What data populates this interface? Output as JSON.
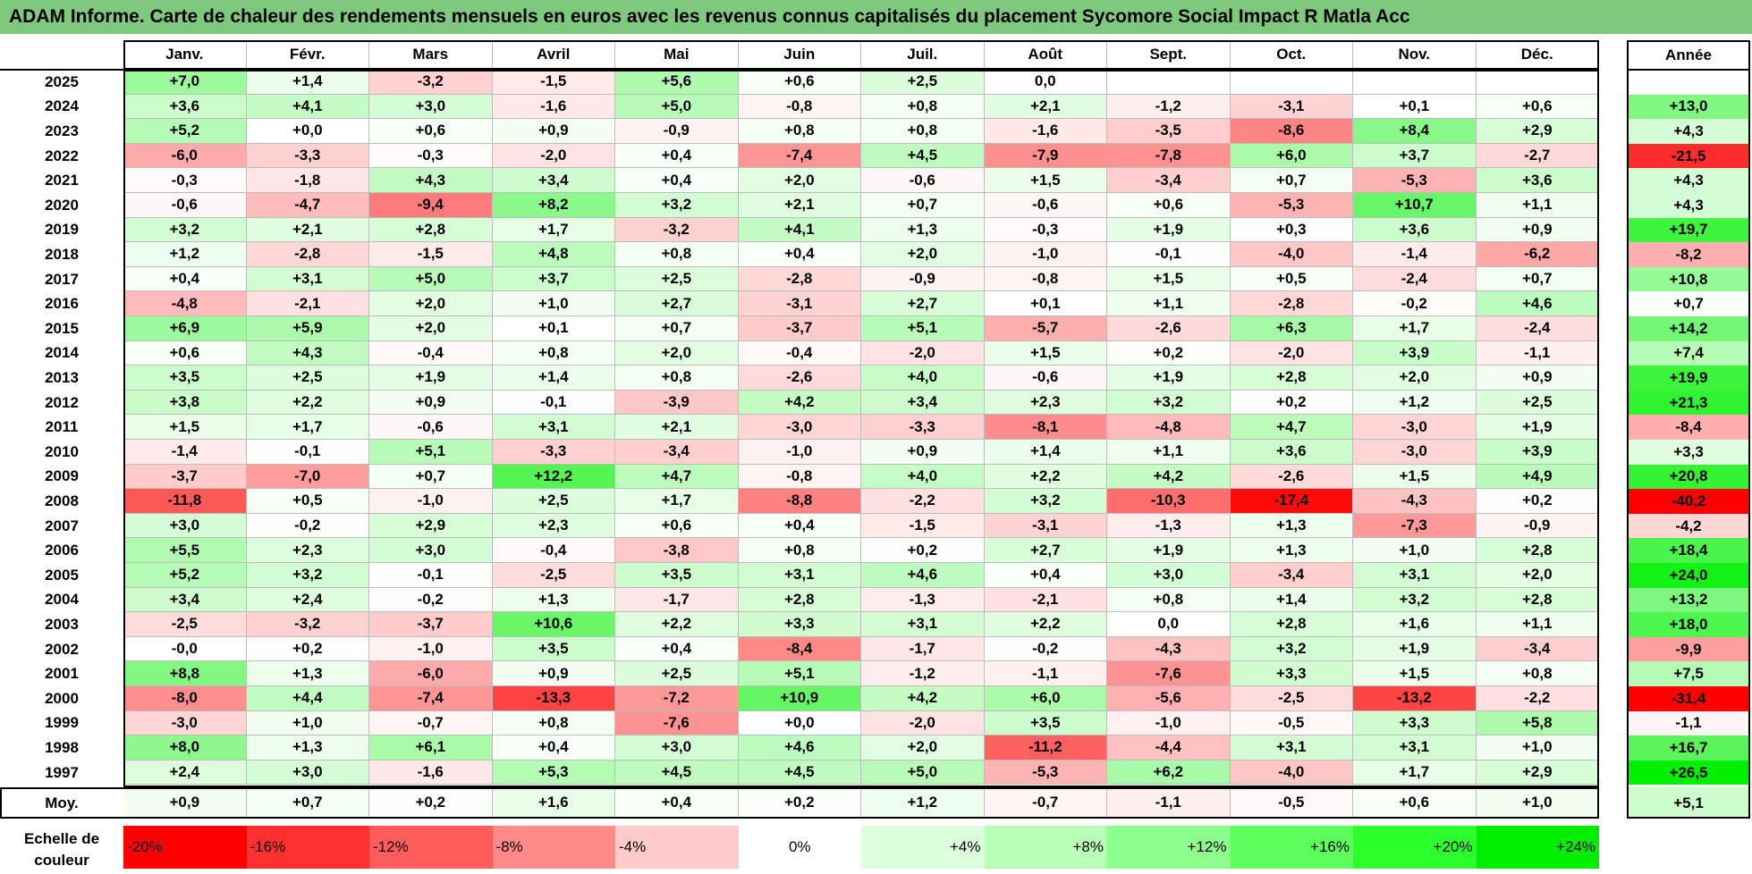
{
  "title": "ADAM Informe. Carte de chaleur des rendements mensuels en euros avec les revenus connus capitalisés du placement Sycomore Social Impact R Matla Acc",
  "chart_data": {
    "type": "heatmap",
    "title": "ADAM Informe. Carte de chaleur des rendements mensuels en euros avec les revenus connus capitalisés du placement Sycomore Social Impact R Matla Acc",
    "months": [
      "Janv.",
      "Févr.",
      "Mars",
      "Avril",
      "Mai",
      "Juin",
      "Juil.",
      "Août",
      "Sept.",
      "Oct.",
      "Nov.",
      "Déc."
    ],
    "year_header": "Année",
    "rows": [
      {
        "year": "2025",
        "values": [
          "+7,0",
          "+1,4",
          "-3,2",
          "-1,5",
          "+5,6",
          "+0,6",
          "+2,5",
          "0,0",
          "",
          "",
          "",
          ""
        ],
        "annual": ""
      },
      {
        "year": "2024",
        "values": [
          "+3,6",
          "+4,1",
          "+3,0",
          "-1,6",
          "+5,0",
          "-0,8",
          "+0,8",
          "+2,1",
          "-1,2",
          "-3,1",
          "+0,1",
          "+0,6"
        ],
        "annual": "+13,0"
      },
      {
        "year": "2023",
        "values": [
          "+5,2",
          "+0,0",
          "+0,6",
          "+0,9",
          "-0,9",
          "+0,8",
          "+0,8",
          "-1,6",
          "-3,5",
          "-8,6",
          "+8,4",
          "+2,9"
        ],
        "annual": "+4,3"
      },
      {
        "year": "2022",
        "values": [
          "-6,0",
          "-3,3",
          "-0,3",
          "-2,0",
          "+0,4",
          "-7,4",
          "+4,5",
          "-7,9",
          "-7,8",
          "+6,0",
          "+3,7",
          "-2,7"
        ],
        "annual": "-21,5"
      },
      {
        "year": "2021",
        "values": [
          "-0,3",
          "-1,8",
          "+4,3",
          "+3,4",
          "+0,4",
          "+2,0",
          "-0,6",
          "+1,5",
          "-3,4",
          "+0,7",
          "-5,3",
          "+3,6"
        ],
        "annual": "+4,3"
      },
      {
        "year": "2020",
        "values": [
          "-0,6",
          "-4,7",
          "-9,4",
          "+8,2",
          "+3,2",
          "+2,1",
          "+0,7",
          "-0,6",
          "+0,6",
          "-5,3",
          "+10,7",
          "+1,1"
        ],
        "annual": "+4,3"
      },
      {
        "year": "2019",
        "values": [
          "+3,2",
          "+2,1",
          "+2,8",
          "+1,7",
          "-3,2",
          "+4,1",
          "+1,3",
          "-0,3",
          "+1,9",
          "+0,3",
          "+3,6",
          "+0,9"
        ],
        "annual": "+19,7"
      },
      {
        "year": "2018",
        "values": [
          "+1,2",
          "-2,8",
          "-1,5",
          "+4,8",
          "+0,8",
          "+0,4",
          "+2,0",
          "-1,0",
          "-0,1",
          "-4,0",
          "-1,4",
          "-6,2"
        ],
        "annual": "-8,2"
      },
      {
        "year": "2017",
        "values": [
          "+0,4",
          "+3,1",
          "+5,0",
          "+3,7",
          "+2,5",
          "-2,8",
          "-0,9",
          "-0,8",
          "+1,5",
          "+0,5",
          "-2,4",
          "+0,7"
        ],
        "annual": "+10,8"
      },
      {
        "year": "2016",
        "values": [
          "-4,8",
          "-2,1",
          "+2,0",
          "+1,0",
          "+2,7",
          "-3,1",
          "+2,7",
          "+0,1",
          "+1,1",
          "-2,8",
          "-0,2",
          "+4,6"
        ],
        "annual": "+0,7"
      },
      {
        "year": "2015",
        "values": [
          "+6,9",
          "+5,9",
          "+2,0",
          "+0,1",
          "+0,7",
          "-3,7",
          "+5,1",
          "-5,7",
          "-2,6",
          "+6,3",
          "+1,7",
          "-2,4"
        ],
        "annual": "+14,2"
      },
      {
        "year": "2014",
        "values": [
          "+0,6",
          "+4,3",
          "-0,4",
          "+0,8",
          "+2,0",
          "-0,4",
          "-2,0",
          "+1,5",
          "+0,2",
          "-2,0",
          "+3,9",
          "-1,1"
        ],
        "annual": "+7,4"
      },
      {
        "year": "2013",
        "values": [
          "+3,5",
          "+2,5",
          "+1,9",
          "+1,4",
          "+0,8",
          "-2,6",
          "+4,0",
          "-0,6",
          "+1,9",
          "+2,8",
          "+2,0",
          "+0,9"
        ],
        "annual": "+19,9"
      },
      {
        "year": "2012",
        "values": [
          "+3,8",
          "+2,2",
          "+0,9",
          "-0,1",
          "-3,9",
          "+4,2",
          "+3,4",
          "+2,3",
          "+3,2",
          "+0,2",
          "+1,2",
          "+2,5"
        ],
        "annual": "+21,3"
      },
      {
        "year": "2011",
        "values": [
          "+1,5",
          "+1,7",
          "-0,6",
          "+3,1",
          "+2,1",
          "-3,0",
          "-3,3",
          "-8,1",
          "-4,8",
          "+4,7",
          "-3,0",
          "+1,9"
        ],
        "annual": "-8,4"
      },
      {
        "year": "2010",
        "values": [
          "-1,4",
          "-0,1",
          "+5,1",
          "-3,3",
          "-3,4",
          "-1,0",
          "+0,9",
          "+1,4",
          "+1,1",
          "+3,6",
          "-3,0",
          "+3,9"
        ],
        "annual": "+3,3"
      },
      {
        "year": "2009",
        "values": [
          "-3,7",
          "-7,0",
          "+0,7",
          "+12,2",
          "+4,7",
          "-0,8",
          "+4,0",
          "+2,2",
          "+4,2",
          "-2,6",
          "+1,5",
          "+4,9"
        ],
        "annual": "+20,8"
      },
      {
        "year": "2008",
        "values": [
          "-11,8",
          "+0,5",
          "-1,0",
          "+2,5",
          "+1,7",
          "-8,8",
          "-2,2",
          "+3,2",
          "-10,3",
          "-17,4",
          "-4,3",
          "+0,2"
        ],
        "annual": "-40,2"
      },
      {
        "year": "2007",
        "values": [
          "+3,0",
          "-0,2",
          "+2,9",
          "+2,3",
          "+0,6",
          "+0,4",
          "-1,5",
          "-3,1",
          "-1,3",
          "+1,3",
          "-7,3",
          "-0,9"
        ],
        "annual": "-4,2"
      },
      {
        "year": "2006",
        "values": [
          "+5,5",
          "+2,3",
          "+3,0",
          "-0,4",
          "-3,8",
          "+0,8",
          "+0,2",
          "+2,7",
          "+1,9",
          "+1,3",
          "+1,0",
          "+2,8"
        ],
        "annual": "+18,4"
      },
      {
        "year": "2005",
        "values": [
          "+5,2",
          "+3,2",
          "-0,1",
          "-2,5",
          "+3,5",
          "+3,1",
          "+4,6",
          "+0,4",
          "+3,0",
          "-3,4",
          "+3,1",
          "+2,0"
        ],
        "annual": "+24,0"
      },
      {
        "year": "2004",
        "values": [
          "+3,4",
          "+2,4",
          "-0,2",
          "+1,3",
          "-1,7",
          "+2,8",
          "-1,3",
          "-2,1",
          "+0,8",
          "+1,4",
          "+3,2",
          "+2,8"
        ],
        "annual": "+13,2"
      },
      {
        "year": "2003",
        "values": [
          "-2,5",
          "-3,2",
          "-3,7",
          "+10,6",
          "+2,2",
          "+3,3",
          "+3,1",
          "+2,2",
          "0,0",
          "+2,8",
          "+1,6",
          "+1,1"
        ],
        "annual": "+18,0"
      },
      {
        "year": "2002",
        "values": [
          "-0,0",
          "+0,2",
          "-1,0",
          "+3,5",
          "+0,4",
          "-8,4",
          "-1,7",
          "-0,2",
          "-4,3",
          "+3,2",
          "+1,9",
          "-3,4"
        ],
        "annual": "-9,9"
      },
      {
        "year": "2001",
        "values": [
          "+8,8",
          "+1,3",
          "-6,0",
          "+0,9",
          "+2,5",
          "+5,1",
          "-1,2",
          "-1,1",
          "-7,6",
          "+3,3",
          "+1,5",
          "+0,8"
        ],
        "annual": "+7,5"
      },
      {
        "year": "2000",
        "values": [
          "-8,0",
          "+4,4",
          "-7,4",
          "-13,3",
          "-7,2",
          "+10,9",
          "+4,2",
          "+6,0",
          "-5,6",
          "-2,5",
          "-13,2",
          "-2,2"
        ],
        "annual": "-31,4"
      },
      {
        "year": "1999",
        "values": [
          "-3,0",
          "+1,0",
          "-0,7",
          "+0,8",
          "-7,6",
          "+0,0",
          "-2,0",
          "+3,5",
          "-1,0",
          "-0,5",
          "+3,3",
          "+5,8"
        ],
        "annual": "-1,1"
      },
      {
        "year": "1998",
        "values": [
          "+8,0",
          "+1,3",
          "+6,1",
          "+0,4",
          "+3,0",
          "+4,6",
          "+2,0",
          "-11,2",
          "-4,4",
          "+3,1",
          "+3,1",
          "+1,0"
        ],
        "annual": "+16,7"
      },
      {
        "year": "1997",
        "values": [
          "+2,4",
          "+3,0",
          "-1,6",
          "+5,3",
          "+4,5",
          "+4,5",
          "+5,0",
          "-5,3",
          "+6,2",
          "-4,0",
          "+1,7",
          "+2,9"
        ],
        "annual": "+26,5"
      }
    ],
    "average": {
      "label": "Moy.",
      "values": [
        "+0,9",
        "+0,7",
        "+0,2",
        "+1,6",
        "+0,4",
        "+0,2",
        "+1,2",
        "-0,7",
        "-1,1",
        "-0,5",
        "+0,6",
        "+1,0"
      ],
      "annual": "+5,1"
    },
    "legend": {
      "title": "Echelle de couleur",
      "labels": [
        "-20%",
        "-16%",
        "-12%",
        "-8%",
        "-4%",
        "0%",
        "+4%",
        "+8%",
        "+12%",
        "+16%",
        "+20%",
        "+24%"
      ],
      "values": [
        -20,
        -16,
        -12,
        -8,
        -4,
        0,
        4,
        8,
        12,
        16,
        20,
        24
      ],
      "colors": [
        "#ff0000",
        "#ff3030",
        "#ff5c5c",
        "#ff8a8a",
        "#ffcaca",
        "#ffffff",
        "#dcffdc",
        "#b8ffb8",
        "#8cff8c",
        "#5cff5c",
        "#2cff2c",
        "#00ee00"
      ]
    }
  }
}
